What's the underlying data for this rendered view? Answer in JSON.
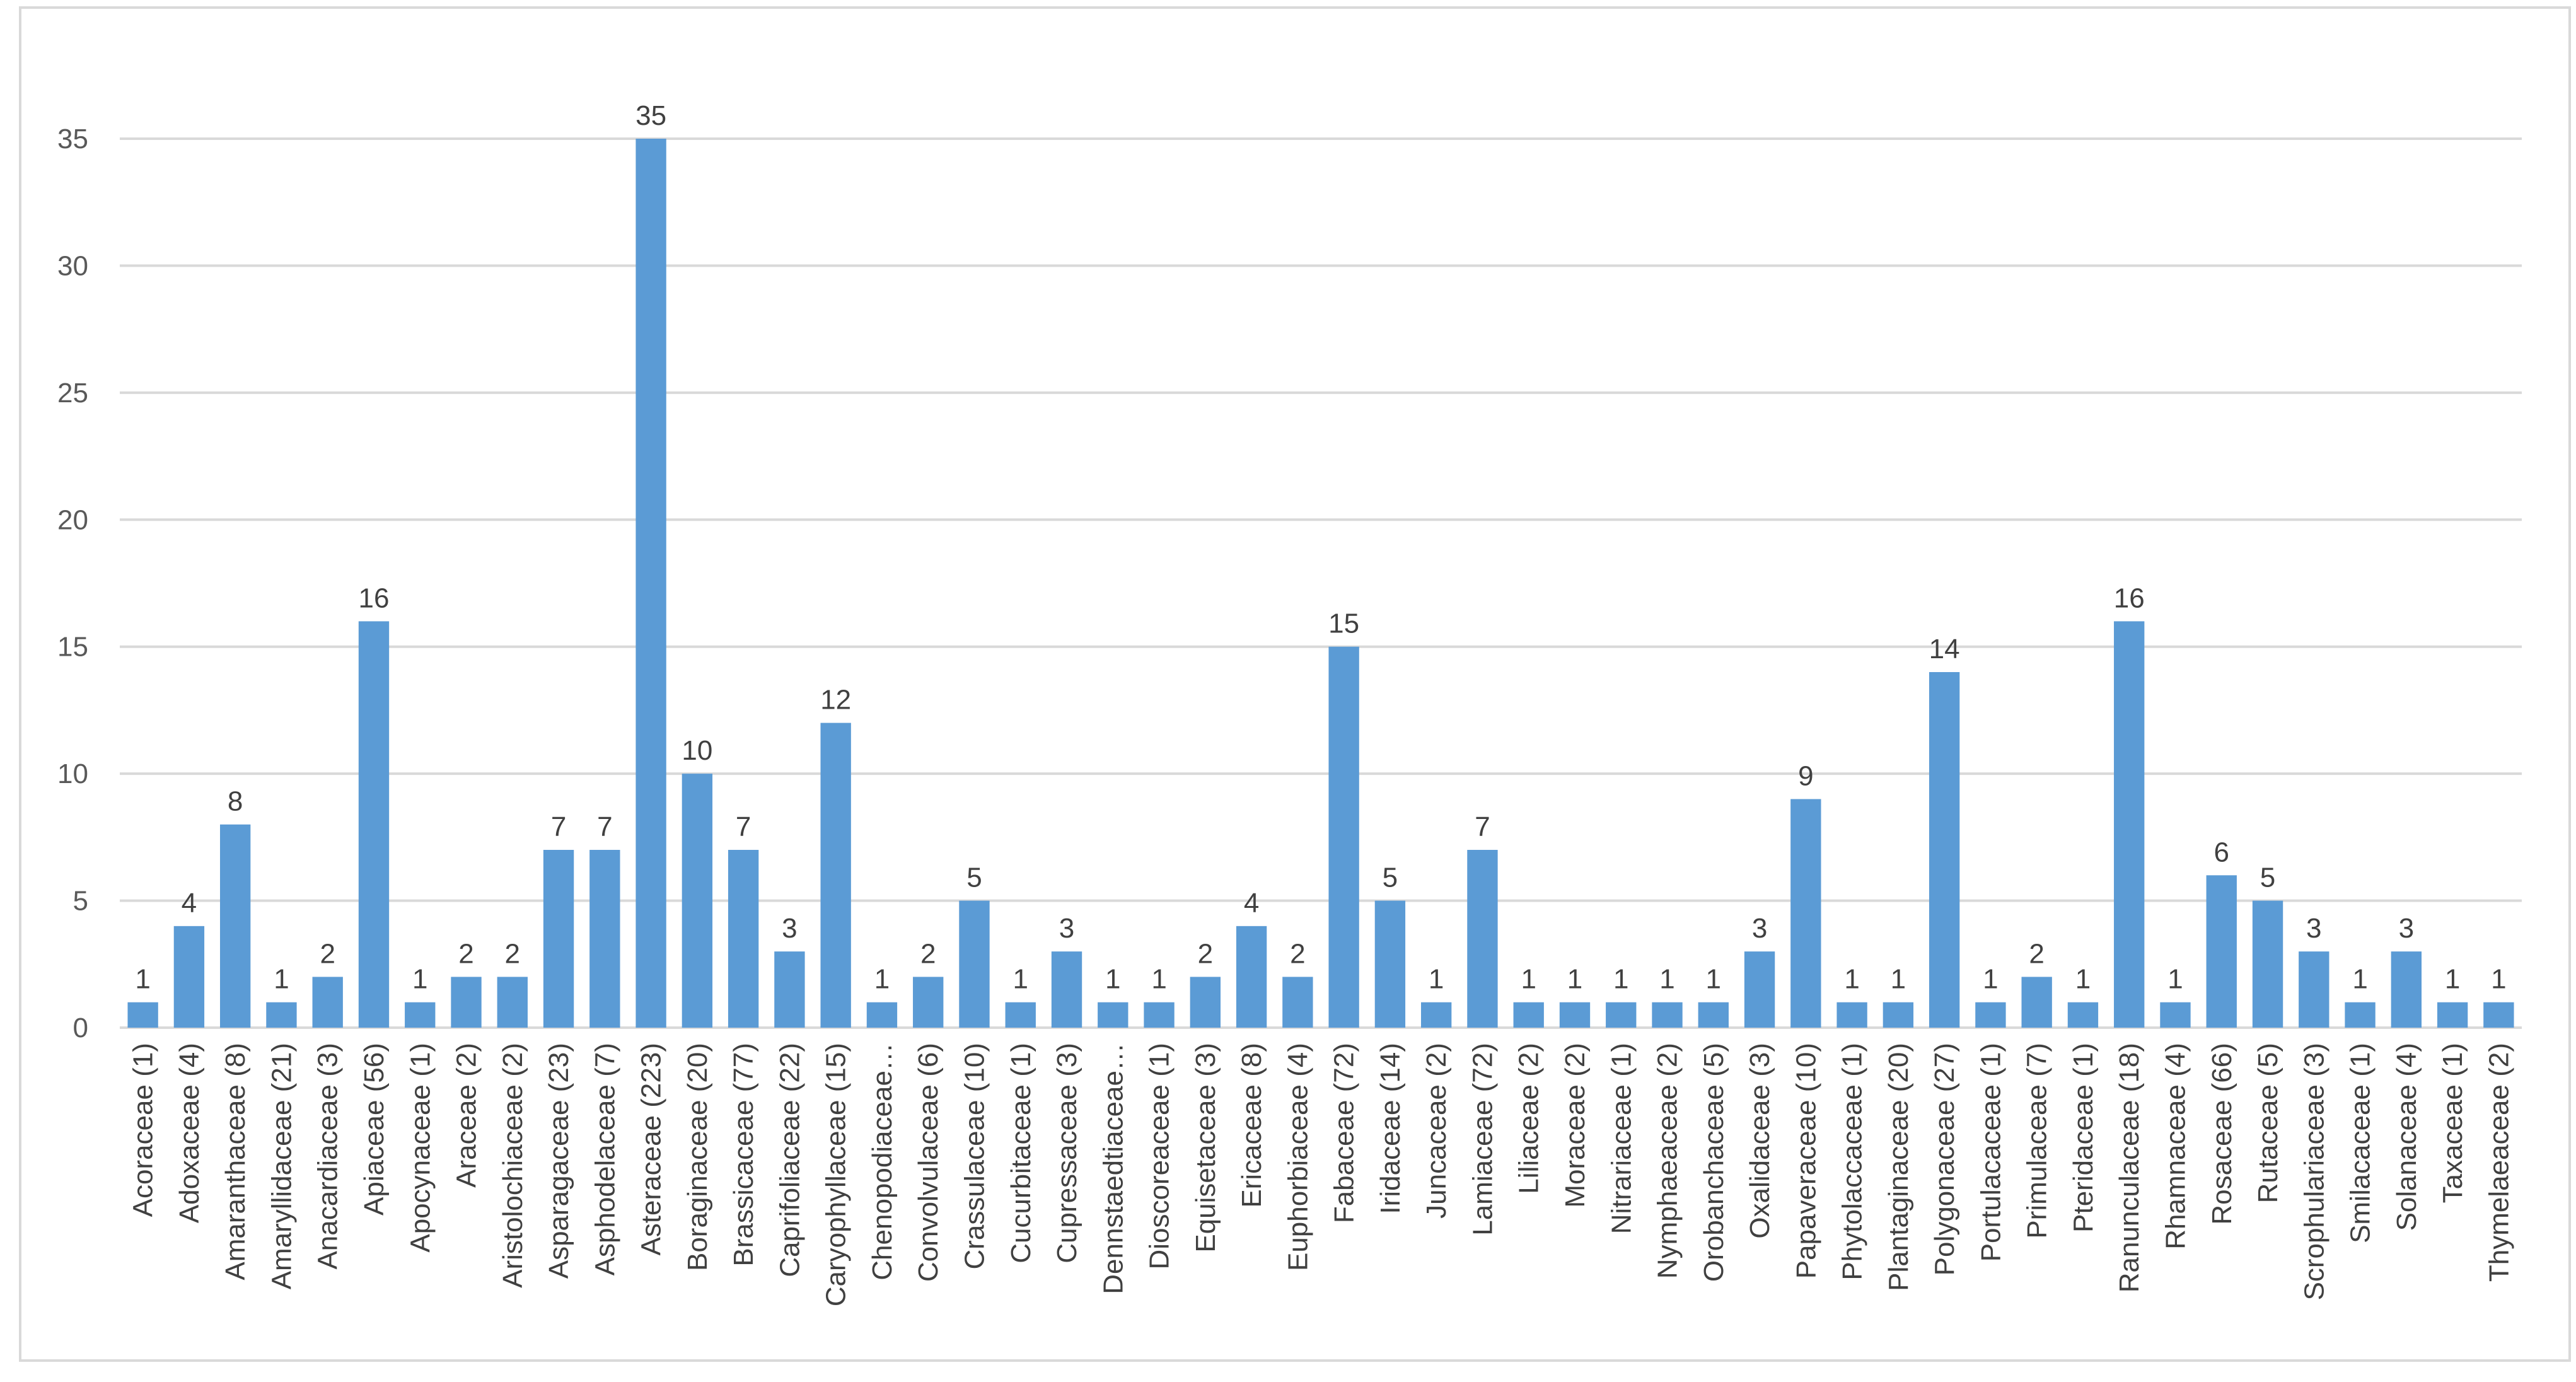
{
  "chart_data": {
    "type": "bar",
    "title": "",
    "xlabel": "",
    "ylabel": "",
    "ylim": [
      0,
      35
    ],
    "yticks": [
      0,
      5,
      10,
      15,
      20,
      25,
      30,
      35
    ],
    "grid": true,
    "bar_color": "#5b9bd5",
    "grid_color": "#d9d9d9",
    "categories": [
      "Acoraceae (1)",
      "Adoxaceae (4)",
      "Amaranthaceae (8)",
      "Amaryllidaceae (21)",
      "Anacardiaceae (3)",
      "Apiaceae (56)",
      "Apocynaceae (1)",
      "Araceae (2)",
      "Aristolochiaceae (2)",
      "Asparagaceae (23)",
      "Asphodelaceae (7)",
      "Asteraceae (223)",
      "Boraginaceae (20)",
      "Brassicaceae (77)",
      "Caprifoliaceae (22)",
      "Caryophyllaceae (15)",
      "Chenopodiaceae…",
      "Convolvulaceae (6)",
      "Crassulaceae (10)",
      "Cucurbitaceae (1)",
      "Cupressaceae (3)",
      "Dennstaedtiaceae…",
      "Dioscoreaceae (1)",
      "Equisetaceae (3)",
      "Ericaceae (8)",
      "Euphorbiaceae (4)",
      "Fabaceae (72)",
      "Iridaceae (14)",
      "Juncaceae (2)",
      "Lamiaceae (72)",
      "Liliaceae (2)",
      "Moraceae (2)",
      "Nitrariaceae (1)",
      "Nymphaeaceae (2)",
      "Orobanchaceae (5)",
      "Oxalidaceae (3)",
      "Papaveraceae (10)",
      "Phytolaccaceae (1)",
      "Plantaginaceae (20)",
      "Polygonaceae (27)",
      "Portulacaceae (1)",
      "Primulaceae (7)",
      "Pteridaceae (1)",
      "Ranunculaceae (18)",
      "Rhamnaceae (4)",
      "Rosaceae (66)",
      "Rutaceae (5)",
      "Scrophulariaceae (3)",
      "Smilacaceae (1)",
      "Solanaceae (4)",
      "Taxaceae (1)",
      "Thymelaeaceae (2)"
    ],
    "values": [
      1,
      4,
      8,
      1,
      2,
      16,
      1,
      2,
      2,
      7,
      7,
      35,
      10,
      7,
      3,
      12,
      1,
      2,
      5,
      1,
      3,
      1,
      1,
      2,
      4,
      2,
      15,
      5,
      1,
      7,
      1,
      1,
      1,
      1,
      1,
      3,
      9,
      1,
      1,
      14,
      1,
      2,
      1,
      16,
      1,
      6,
      5,
      3,
      1,
      3,
      1,
      1
    ]
  }
}
